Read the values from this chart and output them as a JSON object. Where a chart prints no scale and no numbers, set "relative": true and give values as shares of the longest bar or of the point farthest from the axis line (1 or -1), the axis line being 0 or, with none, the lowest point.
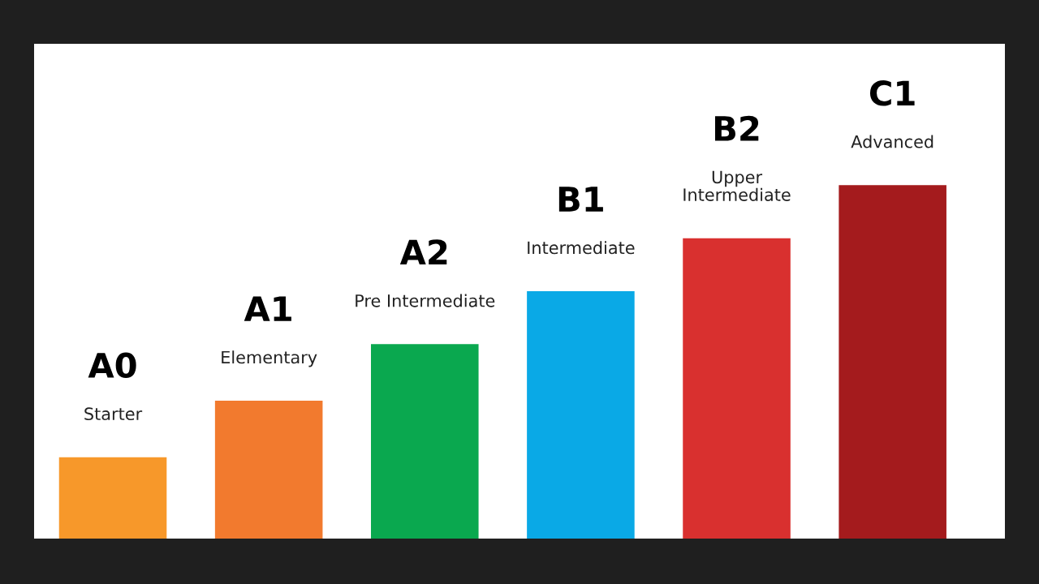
{
  "chart_data": {
    "type": "bar",
    "relative": true,
    "categories": [
      "A0",
      "A1",
      "A2",
      "B1",
      "B2",
      "C1"
    ],
    "values": [
      0.23,
      0.39,
      0.55,
      0.7,
      0.85,
      1
    ],
    "colors": [
      "#f7982a",
      "#f27a2e",
      "#0aa84f",
      "#0aa9e6",
      "#d9302f",
      "#a41b1d"
    ],
    "annotations": [
      "Starter",
      "Elementary",
      "Pre Intermediate",
      "Intermediate",
      "Upper\nIntermediate",
      "Advanced"
    ]
  }
}
